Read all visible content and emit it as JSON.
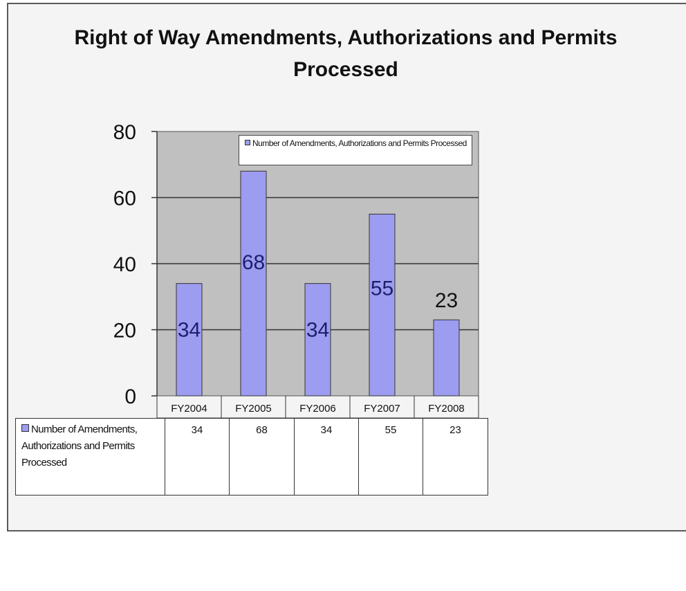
{
  "chart_data": {
    "type": "bar",
    "title": "Right of Way Amendments, Authorizations and Permits Processed",
    "categories": [
      "FY2004",
      "FY2005",
      "FY2006",
      "FY2007",
      "FY2008"
    ],
    "series": [
      {
        "name": "Number of Amendments, Authorizations and Permits Processed",
        "values": [
          34,
          68,
          34,
          55,
          23
        ],
        "color": "#9c9cf0"
      }
    ],
    "ylim": [
      0,
      80
    ],
    "yticks": [
      0,
      20,
      40,
      60,
      80
    ],
    "grid": true,
    "legend": "top-right",
    "data_table": true,
    "plot_background": "#c0c0c0"
  }
}
